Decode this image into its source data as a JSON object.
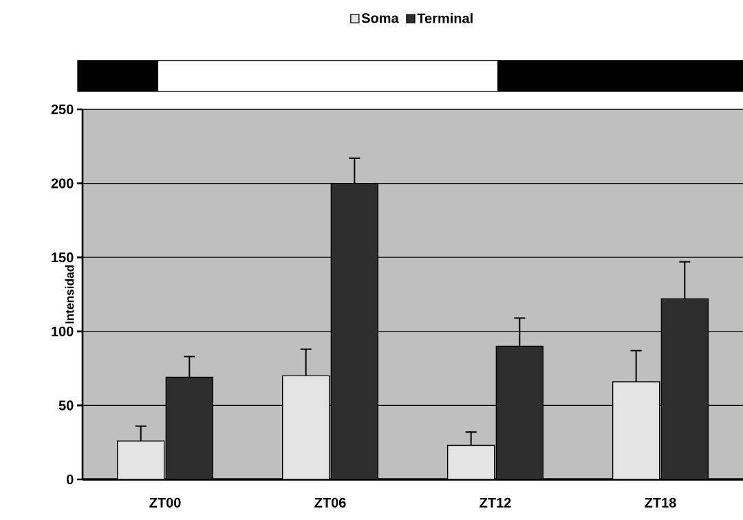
{
  "chart_data": {
    "type": "bar",
    "ylabel": "Intensidad",
    "categories": [
      "ZT00",
      "ZT06",
      "ZT12",
      "ZT18"
    ],
    "series": [
      {
        "name": "Soma",
        "color": "#e4e4e4",
        "values": [
          26,
          70,
          23,
          66
        ],
        "errors": [
          [
            26,
            36
          ],
          [
            70,
            88
          ],
          [
            23,
            32
          ],
          [
            66,
            87
          ]
        ]
      },
      {
        "name": "Terminal",
        "color": "#2e2e2e",
        "values": [
          69,
          200,
          90,
          122
        ],
        "errors": [
          [
            69,
            83
          ],
          [
            200,
            217
          ],
          [
            90,
            109
          ],
          [
            122,
            147
          ]
        ]
      }
    ],
    "ylim": [
      0,
      250
    ],
    "yticks": [
      0,
      50,
      100,
      150,
      200,
      250
    ],
    "grid": "y",
    "legend": "top"
  }
}
